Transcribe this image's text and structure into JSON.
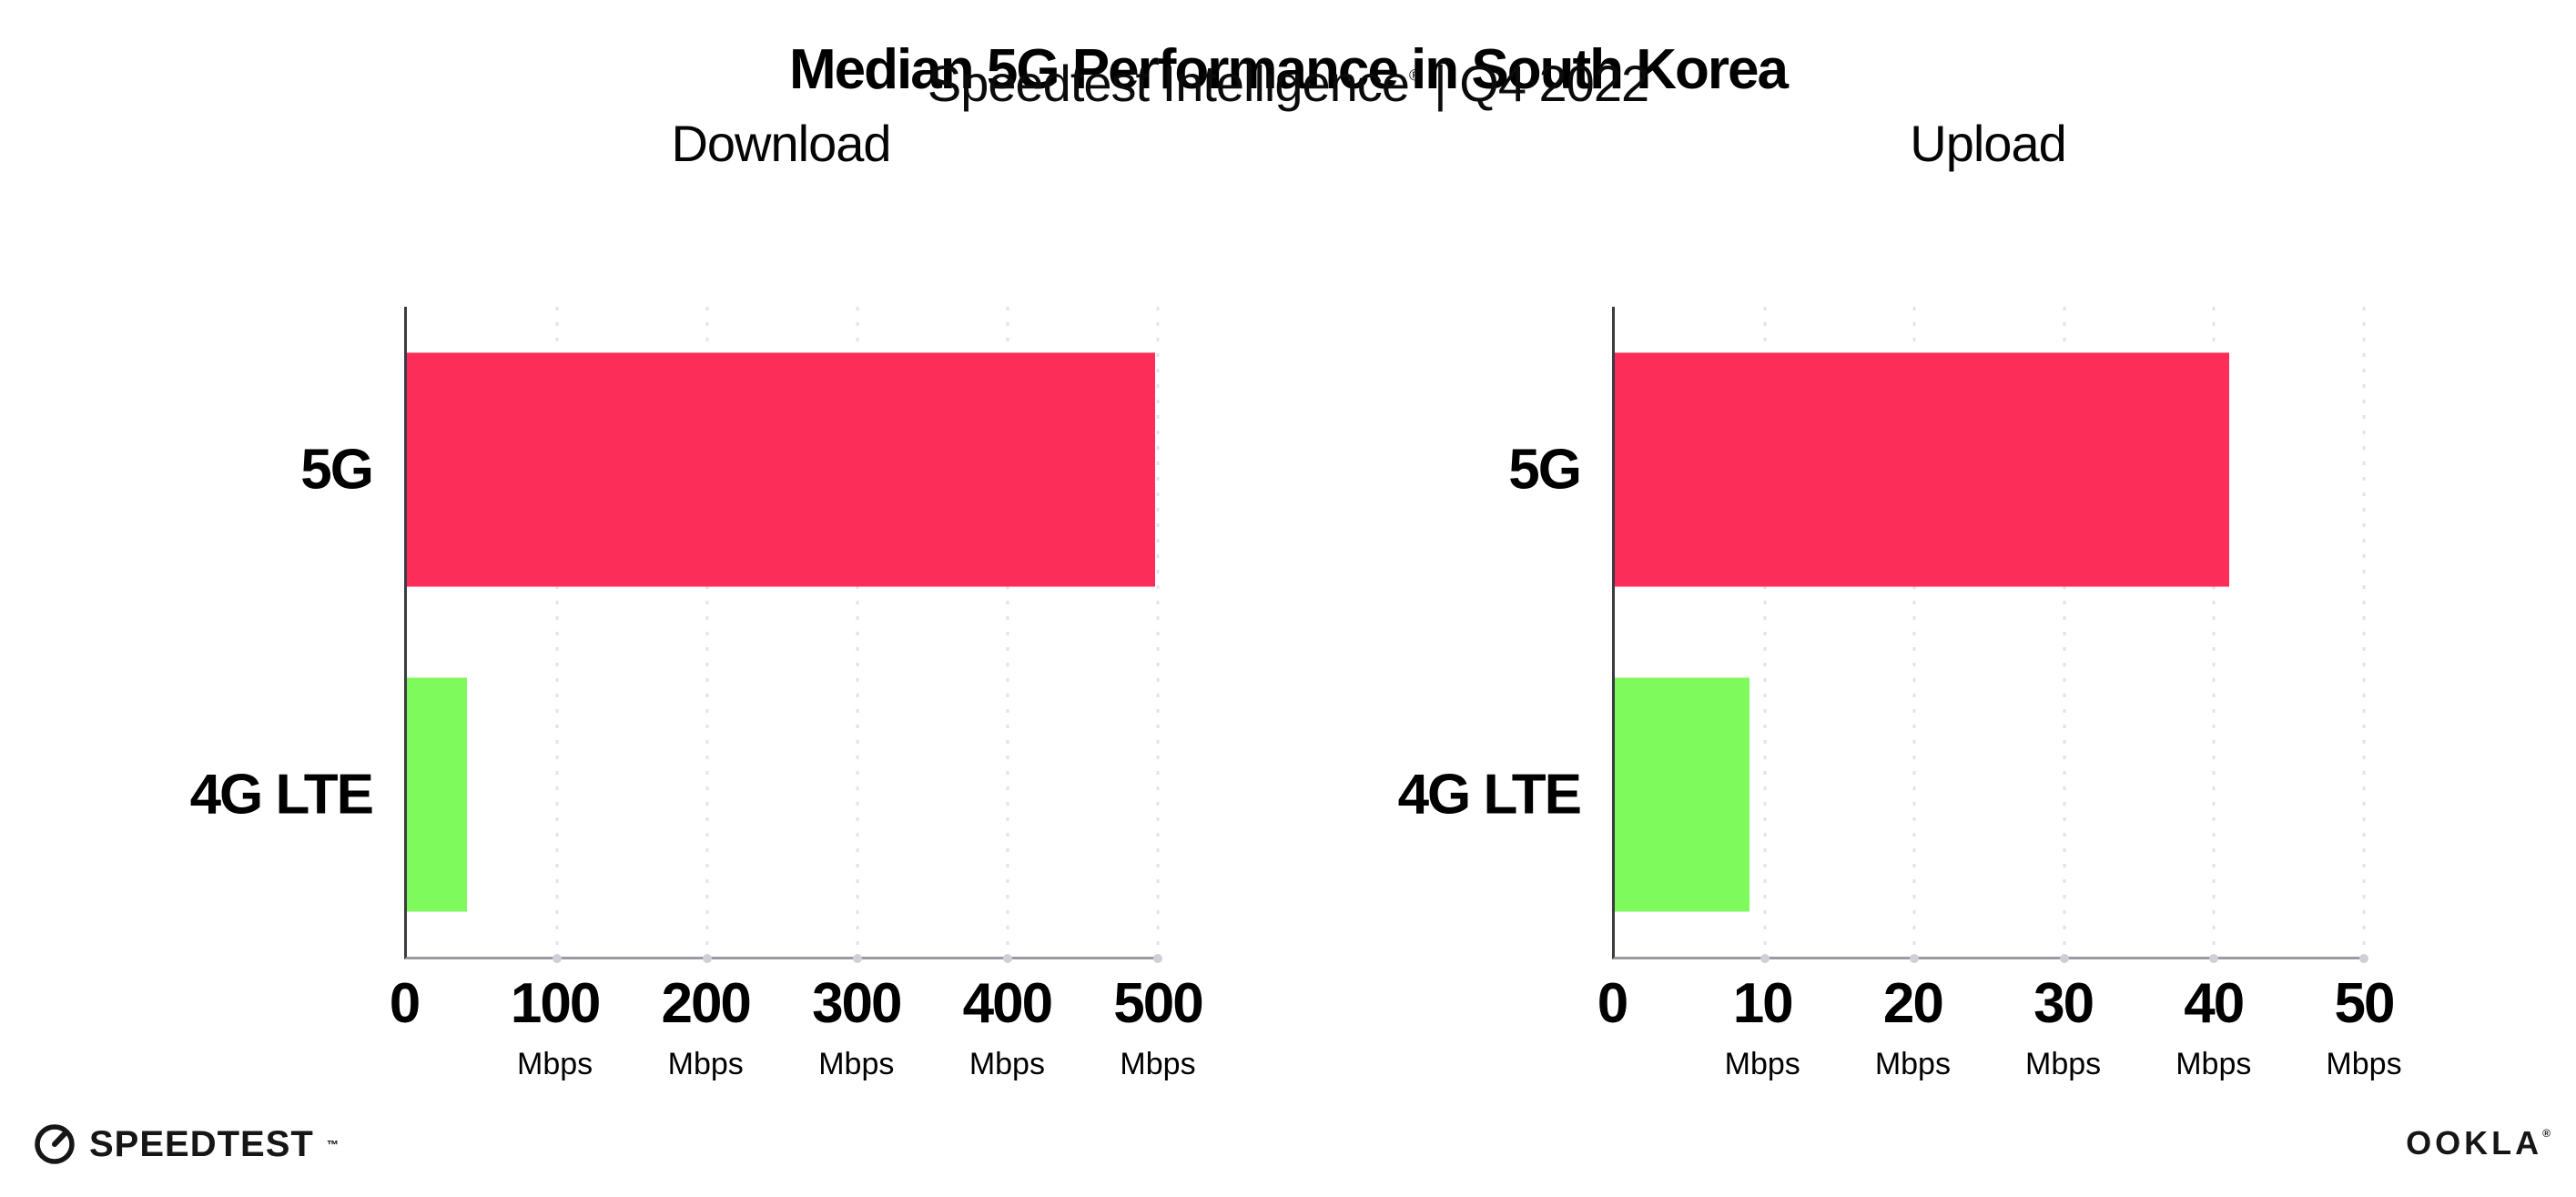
{
  "header": {
    "title": "Median 5G Performance in South Korea",
    "subtitle_brand": "Speedtest Intelligence",
    "subtitle_reg": "®",
    "subtitle_rest": "| Q4 2022"
  },
  "colors": {
    "bar_5g_pink": "#FC2D58",
    "bar_4g_green": "#7EFA5C",
    "gridline": "#E2E2EC",
    "axis_left_spine": "#3B3B43",
    "axis_bottom_spine": "#9A9AA2"
  },
  "chart_data": [
    {
      "type": "bar",
      "orientation": "horizontal",
      "title": "Download",
      "categories": [
        "5G",
        "4G LTE"
      ],
      "values": [
        498,
        40
      ],
      "value_unit": "Mbps",
      "xlim": [
        0,
        500
      ],
      "xticks": [
        0,
        100,
        200,
        300,
        400,
        500
      ],
      "xtick_unit": "Mbps",
      "grid": "vertical-dotted",
      "legend": "none",
      "bar_colors": [
        "#FC2D58",
        "#7EFA5C"
      ]
    },
    {
      "type": "bar",
      "orientation": "horizontal",
      "title": "Upload",
      "categories": [
        "5G",
        "4G LTE"
      ],
      "values": [
        41,
        9
      ],
      "value_unit": "Mbps",
      "xlim": [
        0,
        50
      ],
      "xticks": [
        0,
        10,
        20,
        30,
        40,
        50
      ],
      "xtick_unit": "Mbps",
      "grid": "vertical-dotted",
      "legend": "none",
      "bar_colors": [
        "#FC2D58",
        "#7EFA5C"
      ]
    }
  ],
  "footer": {
    "speedtest": "SPEEDTEST",
    "speedtest_tm": "™",
    "ookla": "OOKLA",
    "ookla_reg": "®"
  }
}
